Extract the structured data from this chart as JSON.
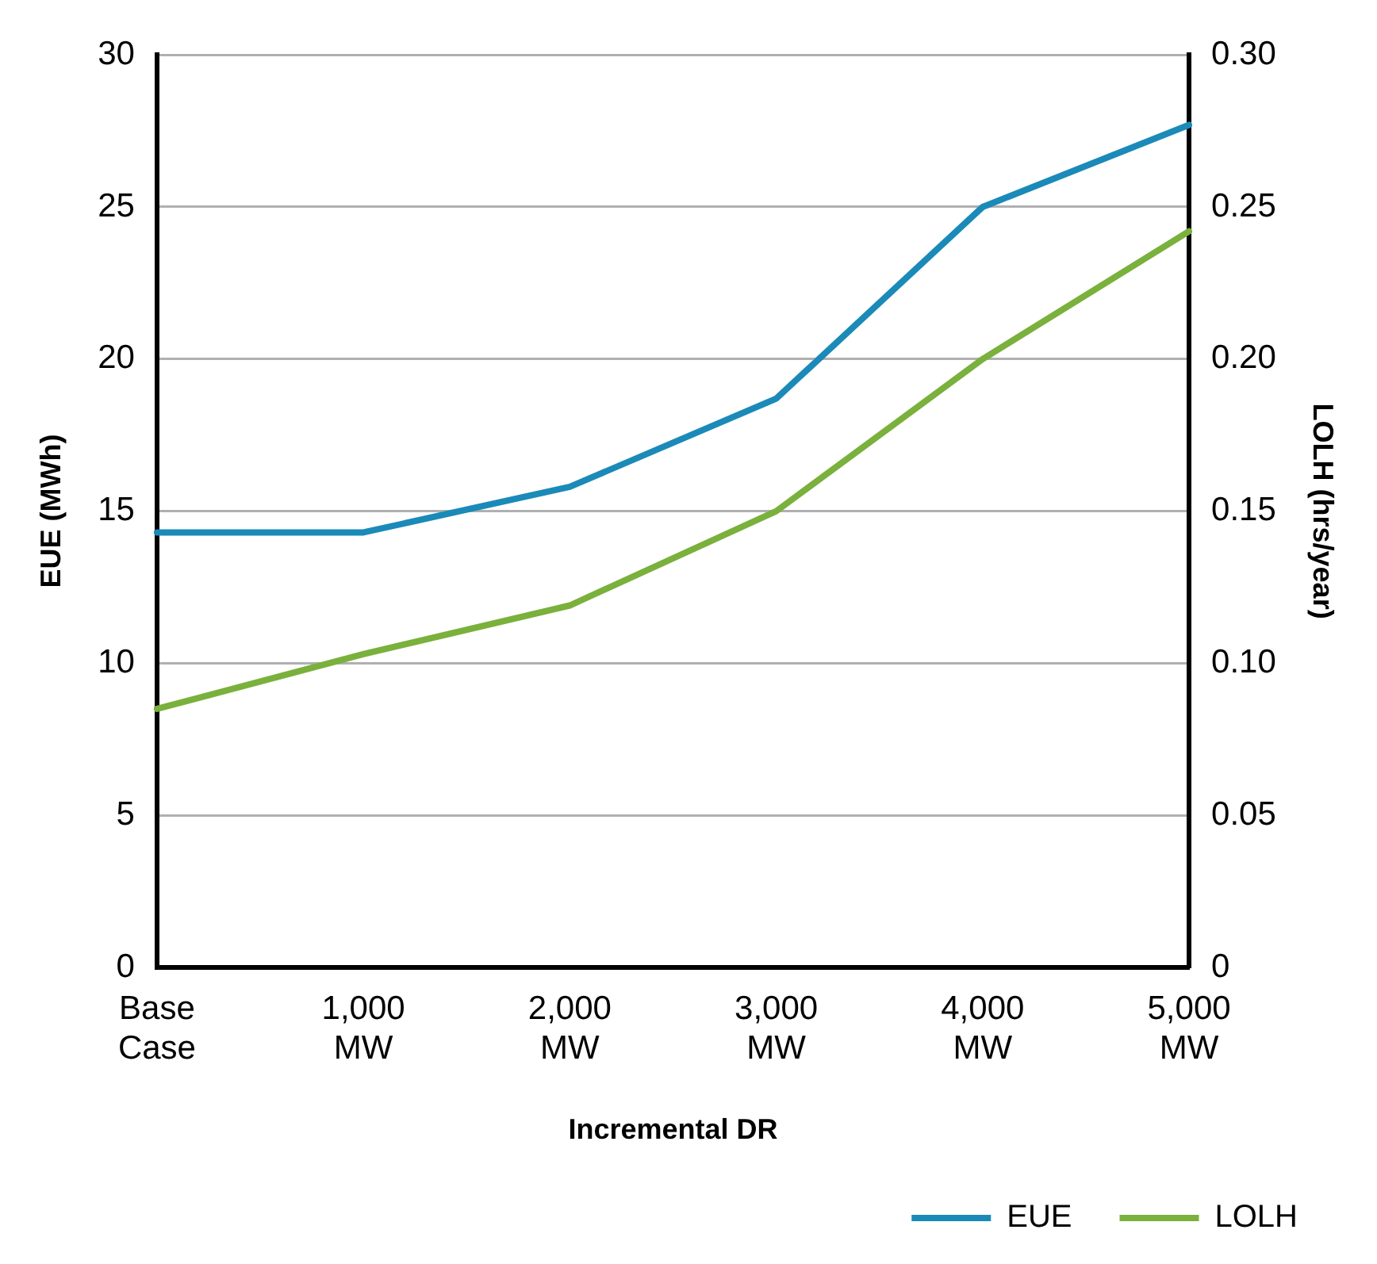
{
  "chart_data": {
    "type": "line",
    "xlabel": "Incremental DR",
    "ylabel": "EUE (MWh)",
    "y2label": "LOLH (hrs/year)",
    "categories": [
      "Base Case",
      "1,000 MW",
      "2,000 MW",
      "3,000 MW",
      "4,000 MW",
      "5,000 MW"
    ],
    "series": [
      {
        "name": "EUE",
        "color": "#1b8ab8",
        "values": [
          14.3,
          14.3,
          15.8,
          18.7,
          25.0,
          27.7
        ]
      },
      {
        "name": "LOLH",
        "color": "#7ab03c",
        "axis": "y2",
        "values": [
          0.085,
          0.103,
          0.119,
          0.15,
          0.2,
          0.242
        ]
      }
    ],
    "ylim": [
      0,
      30
    ],
    "yticks": [
      0,
      5,
      10,
      15,
      20,
      25,
      30
    ],
    "y2lim": [
      0,
      0.3
    ],
    "y2ticks": [
      {
        "value": 0,
        "label": "0"
      },
      {
        "value": 0.05,
        "label": "0.05"
      },
      {
        "value": 0.1,
        "label": "0.10"
      },
      {
        "value": 0.15,
        "label": "0.15"
      },
      {
        "value": 0.2,
        "label": "0.20"
      },
      {
        "value": 0.25,
        "label": "0.25"
      },
      {
        "value": 0.3,
        "label": "0.30"
      }
    ],
    "grid": "y",
    "legend": "bottom right",
    "marker": "none",
    "line_style": "solid"
  }
}
